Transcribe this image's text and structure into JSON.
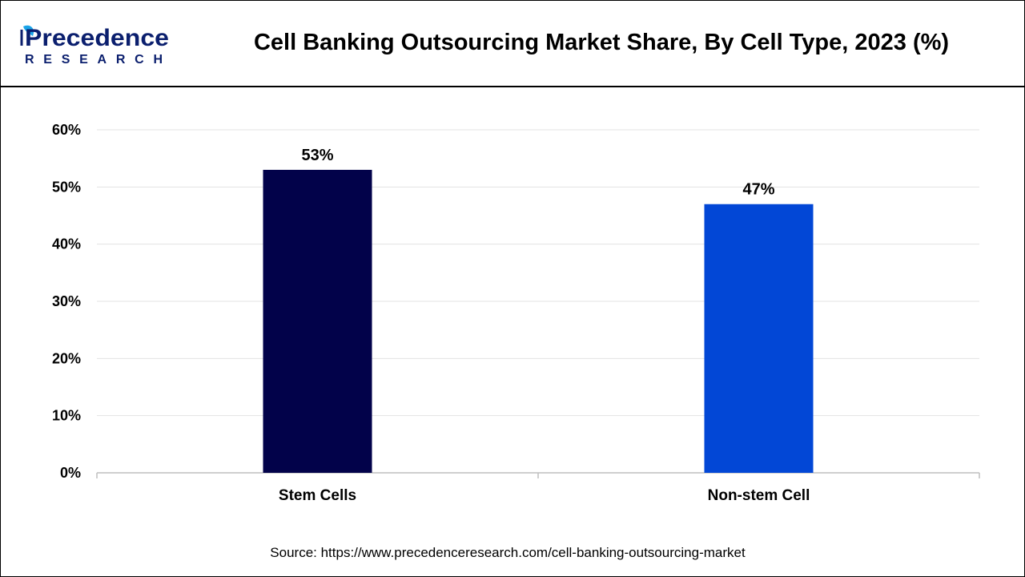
{
  "header": {
    "logo_word": "Precedence",
    "logo_subword": "RESEARCH",
    "title": "Cell Banking Outsourcing Market Share, By Cell Type, 2023 (%)"
  },
  "chart_data": {
    "type": "bar",
    "title": "Cell Banking Outsourcing Market Share, By Cell Type, 2023 (%)",
    "categories": [
      "Stem Cells",
      "Non-stem Cell"
    ],
    "values": [
      53,
      47
    ],
    "data_labels": [
      "53%",
      "47%"
    ],
    "bar_colors": [
      "#02024a",
      "#0247d6"
    ],
    "xlabel": "",
    "ylabel": "",
    "ylim": [
      0,
      60
    ],
    "yticks": [
      "0%",
      "10%",
      "20%",
      "30%",
      "40%",
      "50%",
      "60%"
    ],
    "grid": true,
    "legend": "none"
  },
  "footer": {
    "source": "Source: https://www.precedenceresearch.com/cell-banking-outsourcing-market"
  },
  "colors": {
    "logo_dark": "#0b1f6e",
    "logo_accent": "#1aa3e8",
    "grid": "#e3e3e3",
    "axis": "#bfbfbf"
  }
}
